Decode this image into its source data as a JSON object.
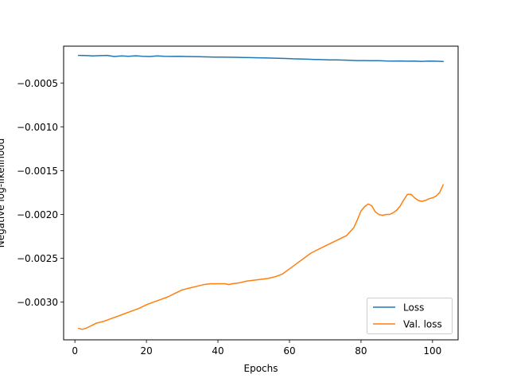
{
  "chart_data": {
    "type": "line",
    "title": "",
    "xlabel": "Epochs",
    "ylabel": "Negative log-likelihood",
    "xlim": [
      -3.15,
      107.15
    ],
    "ylim": [
      -0.00343,
      -8e-05
    ],
    "xticks": [
      0,
      20,
      40,
      60,
      80,
      100
    ],
    "yticks": [
      -0.003,
      -0.0025,
      -0.002,
      -0.0015,
      -0.001,
      -0.0005
    ],
    "ytick_labels": [
      "−0.0030",
      "−0.0025",
      "−0.0020",
      "−0.0015",
      "−0.0010",
      "−0.0005"
    ],
    "grid": false,
    "legend": {
      "placement": "lower-right"
    },
    "colors": {
      "loss": "#1f77b4",
      "val_loss": "#ff7f0e"
    },
    "series": [
      {
        "name": "Loss",
        "key": "loss",
        "x": [
          1,
          3,
          5,
          7,
          9,
          11,
          13,
          15,
          17,
          19,
          21,
          23,
          25,
          27,
          29,
          31,
          33,
          35,
          37,
          39,
          41,
          43,
          45,
          47,
          49,
          51,
          53,
          55,
          57,
          59,
          61,
          63,
          65,
          67,
          69,
          71,
          73,
          75,
          77,
          79,
          81,
          83,
          85,
          87,
          89,
          91,
          93,
          95,
          97,
          99,
          101,
          103
        ],
        "values": [
          -0.000185,
          -0.000187,
          -0.000192,
          -0.000188,
          -0.000185,
          -0.000198,
          -0.000192,
          -0.000195,
          -0.00019,
          -0.000196,
          -0.000198,
          -0.000192,
          -0.000195,
          -0.000197,
          -0.000196,
          -0.000198,
          -0.000199,
          -0.000201,
          -0.000203,
          -0.000204,
          -0.000205,
          -0.000206,
          -0.000207,
          -0.000209,
          -0.000211,
          -0.000213,
          -0.000214,
          -0.000216,
          -0.000218,
          -0.000221,
          -0.000224,
          -0.000226,
          -0.000229,
          -0.000232,
          -0.000233,
          -0.000236,
          -0.000236,
          -0.000239,
          -0.000242,
          -0.000244,
          -0.000244,
          -0.000246,
          -0.000245,
          -0.000249,
          -0.000251,
          -0.000249,
          -0.000252,
          -0.00025,
          -0.000253,
          -0.000251,
          -0.000252,
          -0.000255
        ]
      },
      {
        "name": "Val. loss",
        "key": "val_loss",
        "x": [
          1,
          2,
          3,
          4,
          5,
          6,
          7,
          8,
          10,
          12,
          14,
          16,
          18,
          20,
          22,
          24,
          26,
          28,
          30,
          32,
          34,
          36,
          38,
          40,
          42,
          43,
          44,
          46,
          48,
          50,
          52,
          54,
          56,
          58,
          60,
          62,
          64,
          66,
          68,
          70,
          72,
          74,
          76,
          78,
          79,
          80,
          81,
          82,
          83,
          84,
          85,
          86,
          87,
          88,
          89,
          90,
          91,
          92,
          93,
          94,
          95,
          96,
          97,
          98,
          99,
          100,
          101,
          102,
          103
        ],
        "values": [
          -0.0033,
          -0.00331,
          -0.0033,
          -0.00328,
          -0.00326,
          -0.00324,
          -0.00323,
          -0.00322,
          -0.00319,
          -0.00316,
          -0.00313,
          -0.0031,
          -0.00307,
          -0.00303,
          -0.003,
          -0.00297,
          -0.00294,
          -0.0029,
          -0.00286,
          -0.00284,
          -0.00282,
          -0.0028,
          -0.00279,
          -0.00279,
          -0.00279,
          -0.0028,
          -0.00279,
          -0.00278,
          -0.00276,
          -0.00275,
          -0.00274,
          -0.00273,
          -0.00271,
          -0.00268,
          -0.00262,
          -0.00256,
          -0.0025,
          -0.00244,
          -0.0024,
          -0.00236,
          -0.00232,
          -0.00228,
          -0.00224,
          -0.00215,
          -0.00206,
          -0.00196,
          -0.00191,
          -0.00188,
          -0.0019,
          -0.00197,
          -0.002,
          -0.00201,
          -0.002,
          -0.002,
          -0.00198,
          -0.00195,
          -0.0019,
          -0.00183,
          -0.00177,
          -0.00177,
          -0.00181,
          -0.00184,
          -0.00185,
          -0.00184,
          -0.00182,
          -0.00181,
          -0.00179,
          -0.00175,
          -0.00166
        ]
      }
    ]
  }
}
